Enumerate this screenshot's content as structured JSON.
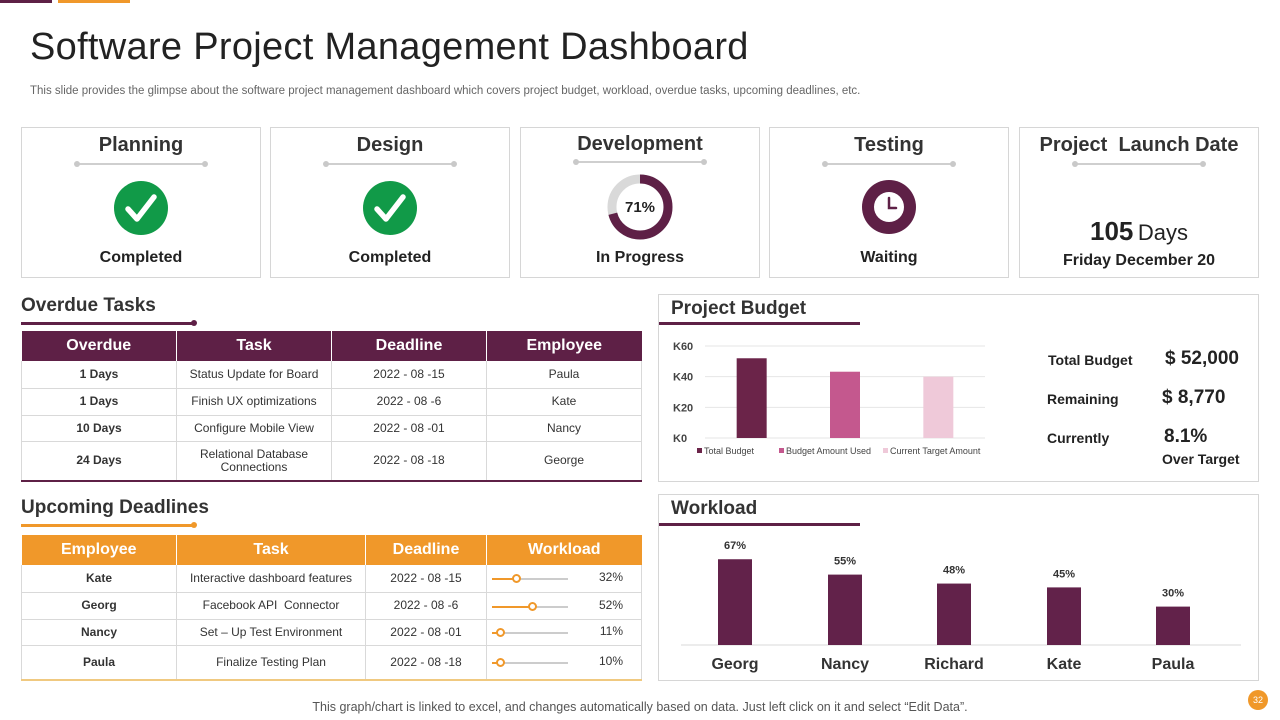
{
  "header": {
    "title": "Software Project Management Dashboard",
    "subtitle": "This slide provides the glimpse about the software project management dashboard which covers project budget, workload, overdue tasks, upcoming deadlines, etc."
  },
  "phases": [
    {
      "name": "Planning",
      "status": "Completed",
      "icon": "check-circle-icon"
    },
    {
      "name": "Design",
      "status": "Completed",
      "icon": "check-circle-icon"
    },
    {
      "name": "Development",
      "status": "In Progress",
      "progress_label": "71%",
      "progress": 71
    },
    {
      "name": "Testing",
      "status": "Waiting",
      "icon": "clock-icon"
    }
  ],
  "launch": {
    "title": "Project  Launch Date",
    "days_number": "105",
    "days_unit": "Days",
    "date": "Friday December 20"
  },
  "overdue": {
    "title": "Overdue Tasks",
    "columns": [
      "Overdue",
      "Task",
      "Deadline",
      "Employee"
    ],
    "rows": [
      [
        "1 Days",
        "Status Update for Board",
        "2022 - 08 -15",
        "Paula"
      ],
      [
        "1 Days",
        "Finish UX optimizations",
        "2022 - 08 -6",
        "Kate"
      ],
      [
        "10 Days",
        "Configure Mobile View",
        "2022 - 08 -01",
        "Nancy"
      ],
      [
        "24 Days",
        "Relational Database Connections",
        "2022 - 08 -18",
        "George"
      ]
    ]
  },
  "upcoming": {
    "title": "Upcoming Deadlines",
    "columns": [
      "Employee",
      "Task",
      "Deadline",
      "Workload"
    ],
    "rows": [
      {
        "employee": "Kate",
        "task": "Interactive dashboard features",
        "deadline": "2022 - 08 -15",
        "workload": "32%",
        "level": 0.32
      },
      {
        "employee": "Georg",
        "task": "Facebook API  Connector",
        "deadline": "2022 - 08 -6",
        "workload": "52%",
        "level": 0.52
      },
      {
        "employee": "Nancy",
        "task": "Set – Up Test Environment",
        "deadline": "2022 - 08 -01",
        "workload": "11%",
        "level": 0.11
      },
      {
        "employee": "Paula",
        "task": "Finalize Testing Plan",
        "deadline": "2022 - 08 -18",
        "workload": "10%",
        "level": 0.1
      }
    ]
  },
  "budget": {
    "title": "Project Budget",
    "total_label": "Total Budget",
    "total_value": "$ 52,000",
    "remaining_label": "Remaining",
    "remaining_value": "$ 8,770",
    "currently_label": "Currently",
    "currently_value": "8.1%",
    "currently_sub": "Over Target"
  },
  "workload": {
    "title": "Workload"
  },
  "chart_data": [
    {
      "type": "bar",
      "title": "",
      "categories": [
        "Total Budget",
        "Budget Amount Used",
        "Current Target Amount"
      ],
      "values": [
        52000,
        43230,
        40000
      ],
      "colors": [
        "#6b2449",
        "#c4588e",
        "#efc9d9"
      ],
      "yticks": [
        "K0",
        "K20",
        "K40",
        "K60"
      ],
      "ylim": [
        0,
        60000
      ],
      "legend": [
        "Total Budget",
        "Budget Amount Used",
        "Current Target Amount"
      ],
      "legend_position": "bottom",
      "grid": true
    },
    {
      "type": "bar",
      "title": "",
      "categories": [
        "Georg",
        "Nancy",
        "Richard",
        "Kate",
        "Paula"
      ],
      "values": [
        67,
        55,
        48,
        45,
        30
      ],
      "data_labels": [
        "67%",
        "55%",
        "48%",
        "45%",
        "30%"
      ],
      "color": "#62224a",
      "ylim": [
        0,
        75
      ],
      "grid": false
    }
  ],
  "footer": {
    "note": "This graph/chart is linked to excel, and changes automatically based on data. Just left click on it and select “Edit Data”.",
    "page": "32"
  },
  "colors": {
    "primary": "#5e2046",
    "accent": "#f0982a",
    "success": "#119a48"
  }
}
